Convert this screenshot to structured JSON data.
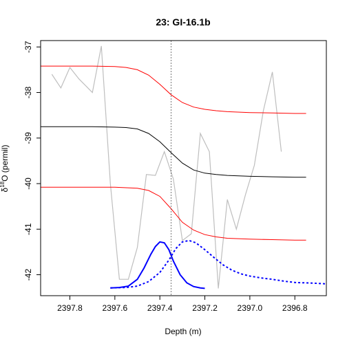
{
  "chart_data": {
    "type": "line",
    "title": "23: GI-16.1b",
    "xlabel": "Depth (m)",
    "ylabel_prefix": "δ",
    "ylabel_sup": "18",
    "ylabel_suffix": "O (permil)",
    "xlim": [
      2397.93,
      2396.66
    ],
    "ylim": [
      -42.46,
      -36.86
    ],
    "x_reversed": true,
    "x_ticks": [
      2397.8,
      2397.6,
      2397.4,
      2397.2,
      2397.0,
      2396.8
    ],
    "x_tick_labels": [
      "2397.8",
      "2397.6",
      "2397.4",
      "2397.2",
      "2397.0",
      "2396.8"
    ],
    "y_ticks": [
      -42,
      -41,
      -40,
      -39,
      -38,
      -37
    ],
    "y_tick_labels": [
      "-42",
      "-41",
      "-40",
      "-39",
      "-38",
      "-37"
    ],
    "colors": {
      "observed": "#bebebe",
      "median": "#000000",
      "ci": "#ff0000",
      "density": "#0000ff",
      "vline": "#555555"
    },
    "vline_x": 2397.35,
    "series": [
      {
        "role": "observed",
        "x": [
          2397.88,
          2397.84,
          2397.8,
          2397.76,
          2397.7,
          2397.66,
          2397.62,
          2397.58,
          2397.54,
          2397.5,
          2397.46,
          2397.42,
          2397.38,
          2397.34,
          2397.3,
          2397.26,
          2397.22,
          2397.18,
          2397.14,
          2397.1,
          2397.06,
          2397.02,
          2396.98,
          2396.94,
          2396.9,
          2396.86,
          2396.82,
          2396.78,
          2396.74,
          2396.7
        ],
        "y": [
          -37.6,
          -37.9,
          -37.45,
          -37.7,
          -38.0,
          -36.98,
          -40.0,
          -42.1,
          -42.1,
          -41.4,
          -39.8,
          -39.82,
          -39.3,
          -39.9,
          -41.25,
          -41.1,
          -38.9,
          -39.3,
          -42.3,
          -40.35,
          -41.0,
          -40.25,
          -39.6,
          -38.4,
          -37.55,
          -39.3,
          null,
          null,
          null,
          null
        ]
      },
      {
        "role": "median",
        "x": [
          2397.93,
          2397.8,
          2397.7,
          2397.6,
          2397.55,
          2397.5,
          2397.45,
          2397.4,
          2397.35,
          2397.3,
          2397.25,
          2397.2,
          2397.15,
          2397.1,
          2397.0,
          2396.9,
          2396.8,
          2396.75
        ],
        "y": [
          -38.75,
          -38.75,
          -38.75,
          -38.76,
          -38.77,
          -38.8,
          -38.9,
          -39.08,
          -39.32,
          -39.55,
          -39.7,
          -39.77,
          -39.8,
          -39.82,
          -39.84,
          -39.85,
          -39.86,
          -39.86
        ]
      },
      {
        "role": "ci_upper",
        "x": [
          2397.93,
          2397.8,
          2397.7,
          2397.6,
          2397.55,
          2397.5,
          2397.45,
          2397.4,
          2397.35,
          2397.3,
          2397.25,
          2397.2,
          2397.15,
          2397.1,
          2397.0,
          2396.9,
          2396.8,
          2396.75
        ],
        "y": [
          -37.42,
          -37.42,
          -37.42,
          -37.43,
          -37.45,
          -37.5,
          -37.62,
          -37.82,
          -38.05,
          -38.22,
          -38.32,
          -38.37,
          -38.4,
          -38.42,
          -38.44,
          -38.45,
          -38.46,
          -38.46
        ]
      },
      {
        "role": "ci_lower",
        "x": [
          2397.93,
          2397.8,
          2397.7,
          2397.6,
          2397.55,
          2397.5,
          2397.45,
          2397.4,
          2397.35,
          2397.3,
          2397.25,
          2397.2,
          2397.15,
          2397.1,
          2397.0,
          2396.9,
          2396.8,
          2396.75
        ],
        "y": [
          -40.08,
          -40.08,
          -40.08,
          -40.08,
          -40.09,
          -40.1,
          -40.15,
          -40.28,
          -40.55,
          -40.85,
          -41.02,
          -41.12,
          -41.17,
          -41.2,
          -41.22,
          -41.23,
          -41.24,
          -41.24
        ]
      },
      {
        "role": "density_solid",
        "x": [
          2397.62,
          2397.58,
          2397.54,
          2397.5,
          2397.47,
          2397.44,
          2397.42,
          2397.4,
          2397.38,
          2397.36,
          2397.34,
          2397.31,
          2397.28,
          2397.25,
          2397.22,
          2397.2
        ],
        "y": [
          -42.29,
          -42.28,
          -42.25,
          -42.1,
          -41.85,
          -41.55,
          -41.38,
          -41.28,
          -41.3,
          -41.45,
          -41.7,
          -42.0,
          -42.18,
          -42.26,
          -42.29,
          -42.3
        ]
      },
      {
        "role": "density_dotted",
        "x": [
          2397.62,
          2397.55,
          2397.5,
          2397.45,
          2397.4,
          2397.36,
          2397.33,
          2397.3,
          2397.27,
          2397.24,
          2397.2,
          2397.16,
          2397.12,
          2397.08,
          2397.04,
          2397.0,
          2396.95,
          2396.9,
          2396.85,
          2396.8,
          2396.75,
          2396.7,
          2396.66
        ],
        "y": [
          -42.29,
          -42.28,
          -42.25,
          -42.15,
          -41.95,
          -41.68,
          -41.43,
          -41.28,
          -41.25,
          -41.3,
          -41.45,
          -41.62,
          -41.78,
          -41.9,
          -41.98,
          -42.03,
          -42.07,
          -42.1,
          -42.14,
          -42.17,
          -42.18,
          -42.19,
          -42.2
        ]
      }
    ]
  }
}
